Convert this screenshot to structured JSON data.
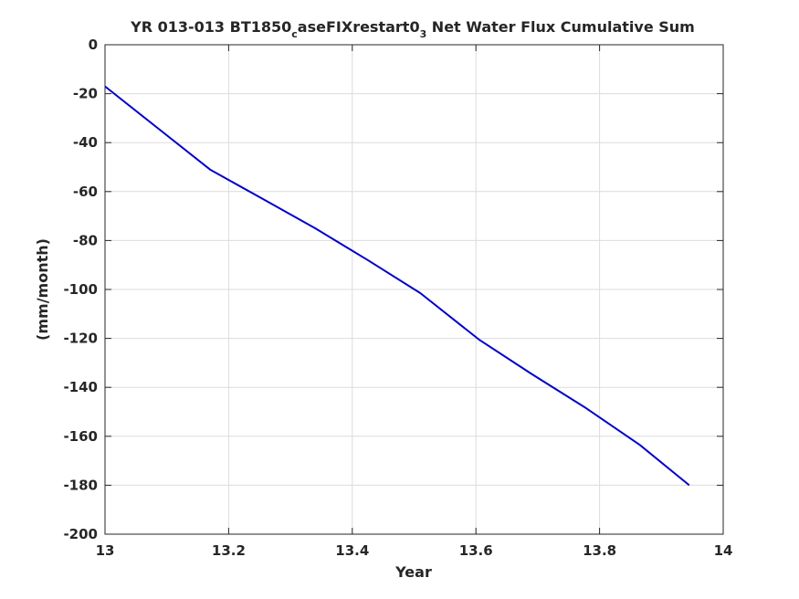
{
  "chart_data": {
    "type": "line",
    "title": {
      "part1": "YR 013-013 BT1850",
      "sub1": "c",
      "part2": "aseFIXrestart0",
      "sub2": "3",
      "part3": " Net Water Flux Cumulative Sum"
    },
    "xlabel": "Year",
    "ylabel": "(mm/month)",
    "xlim": [
      13,
      14
    ],
    "ylim": [
      -200,
      0
    ],
    "xticks": [
      13,
      13.2,
      13.4,
      13.6,
      13.8,
      14
    ],
    "xtick_labels": [
      "13",
      "13.2",
      "13.4",
      "13.6",
      "13.8",
      "14"
    ],
    "yticks": [
      0,
      -20,
      -40,
      -60,
      -80,
      -100,
      -120,
      -140,
      -160,
      -180,
      -200
    ],
    "ytick_labels": [
      "0",
      "-20",
      "-40",
      "-60",
      "-80",
      "-100",
      "-120",
      "-140",
      "-160",
      "-180",
      "-200"
    ],
    "grid": true,
    "series": [
      {
        "color": "#0000cc",
        "x": [
          13.0,
          13.085,
          13.17,
          13.255,
          13.34,
          13.425,
          13.51,
          13.605,
          13.69,
          13.775,
          13.865,
          13.945
        ],
        "y": [
          -17,
          -34,
          -51,
          -63,
          -75,
          -88,
          -101.5,
          -120.5,
          -134.5,
          -148,
          -163.5,
          -180
        ]
      }
    ]
  }
}
